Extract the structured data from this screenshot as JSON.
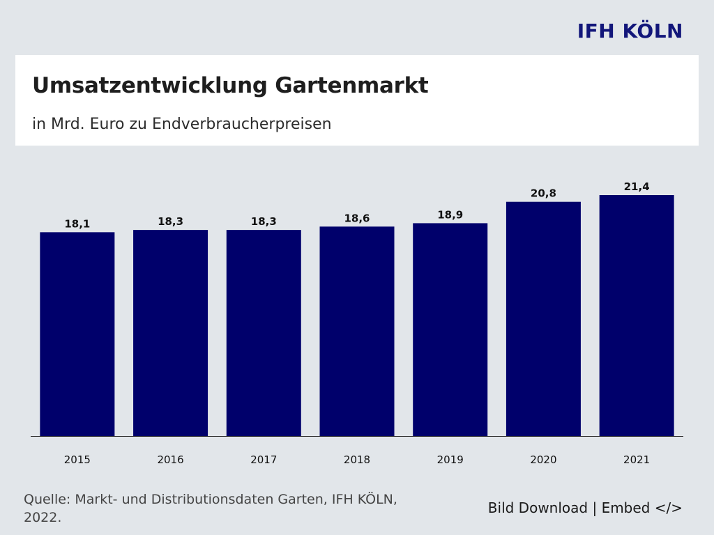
{
  "brand": {
    "logo_text": "IFH KÖLN",
    "color": "#12167a"
  },
  "header": {
    "title": "Umsatzentwicklung Gartenmarkt",
    "subtitle": "in Mrd. Euro zu Endverbraucherpreisen"
  },
  "chart_data": {
    "type": "bar",
    "categories": [
      "2015",
      "2016",
      "2017",
      "2018",
      "2019",
      "2020",
      "2021"
    ],
    "values": [
      18.1,
      18.3,
      18.3,
      18.6,
      18.9,
      20.8,
      21.4
    ],
    "value_labels": [
      "18,1",
      "18,3",
      "18,3",
      "18,6",
      "18,9",
      "20,8",
      "21,4"
    ],
    "ylim": [
      0,
      21.4
    ],
    "grid": false,
    "bar_color": "#00006b"
  },
  "footer": {
    "source": "Quelle: Markt- und Distributionsdaten Garten, IFH KÖLN, 2022.",
    "download_label": "Bild Download",
    "separator": " | ",
    "embed_label": "Embed </>"
  }
}
